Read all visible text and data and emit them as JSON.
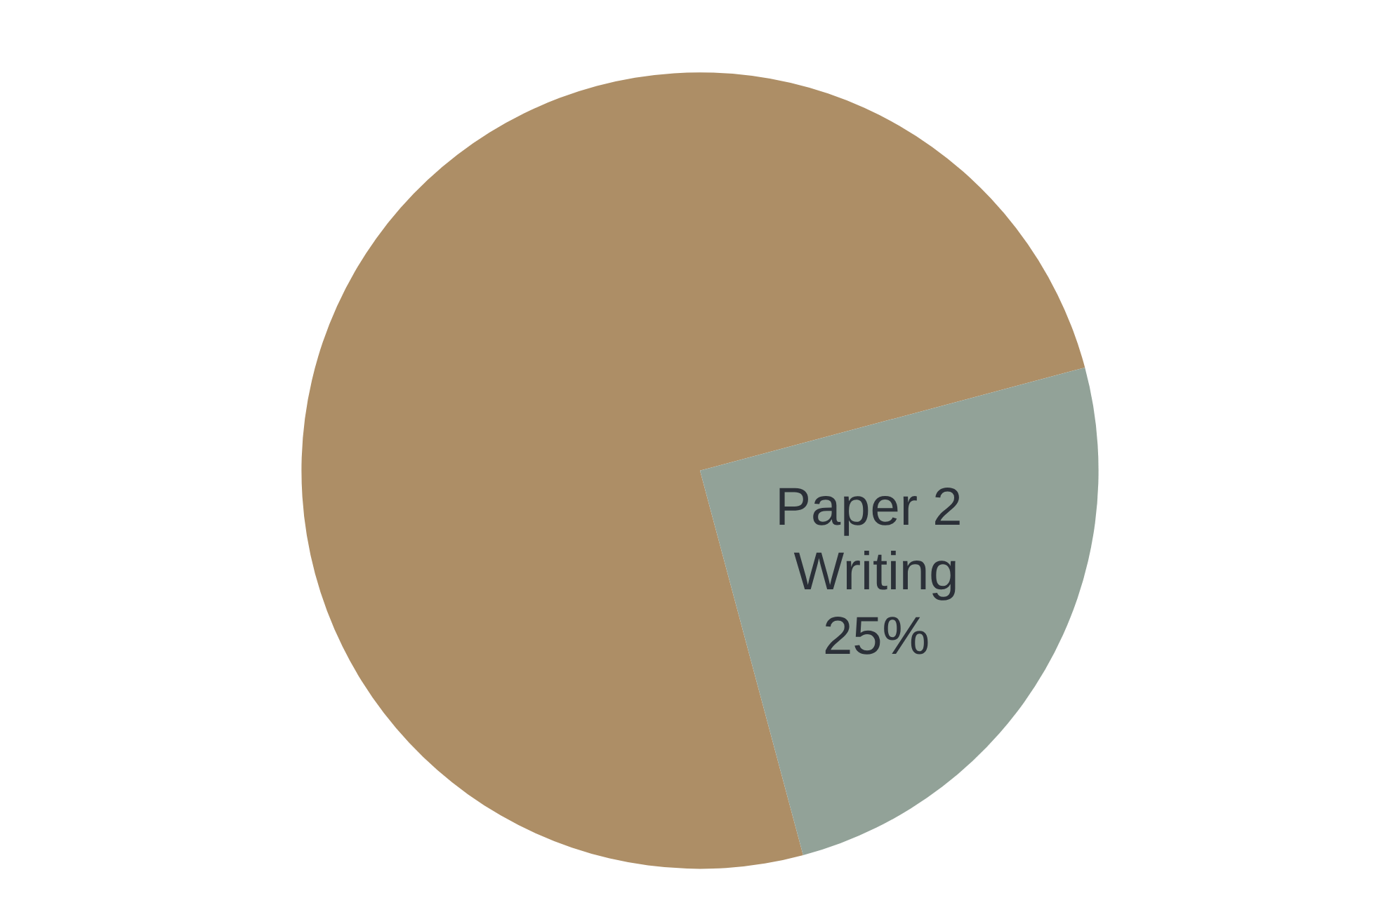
{
  "chart_data": {
    "type": "pie",
    "categories": [
      null,
      "Paper 2 Writing"
    ],
    "values": [
      75,
      25
    ],
    "colors": [
      "#ad8e66",
      "#92a298"
    ],
    "value_labels": [
      null,
      "25%"
    ]
  }
}
